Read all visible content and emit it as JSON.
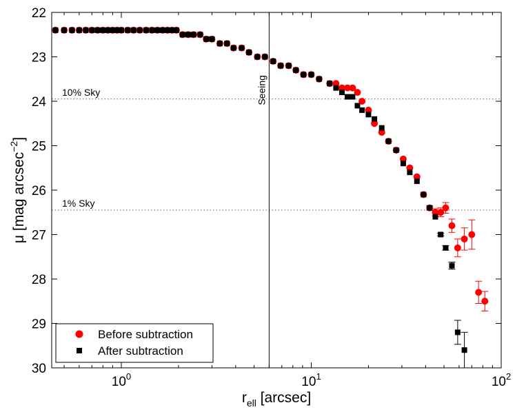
{
  "chart_data": {
    "type": "scatter",
    "title": "",
    "xlabel": "r",
    "xlabel_sub": "ell",
    "xlabel_rest": " [arcsec]",
    "ylabel": "μ [mag arcsec",
    "ylabel_sup": "−2",
    "ylabel_end": "]",
    "xscale": "log",
    "xlim": [
      0.43,
      100
    ],
    "ylim": [
      22,
      30
    ],
    "y_inverted": true,
    "x_ticks": [
      {
        "value": 1,
        "base": "10",
        "exp": "0"
      },
      {
        "value": 10,
        "base": "10",
        "exp": "1"
      },
      {
        "value": 100,
        "base": "10",
        "exp": "2"
      }
    ],
    "y_ticks": [
      "22",
      "23",
      "24",
      "25",
      "26",
      "27",
      "28",
      "29",
      "30"
    ],
    "grid": false,
    "legend_position": "bottom-left",
    "vertical_line": {
      "x": 6.0,
      "label": "Seeing"
    },
    "horizontal_lines": [
      {
        "y": 23.95,
        "label": "10% Sky"
      },
      {
        "y": 26.45,
        "label": "1% Sky"
      }
    ],
    "series": [
      {
        "name": "Before subtraction",
        "color": "#ff0000",
        "marker": "circle",
        "x": [
          0.45,
          0.5,
          0.55,
          0.6,
          0.65,
          0.7,
          0.75,
          0.8,
          0.85,
          0.9,
          0.95,
          1.0,
          1.08,
          1.16,
          1.25,
          1.35,
          1.45,
          1.55,
          1.65,
          1.75,
          1.85,
          1.95,
          2.1,
          2.25,
          2.4,
          2.6,
          2.8,
          3.0,
          3.3,
          3.6,
          3.9,
          4.3,
          4.7,
          5.2,
          5.7,
          6.3,
          6.9,
          7.6,
          8.3,
          9.1,
          10.0,
          11.0,
          12.5,
          13.5,
          14.5,
          15.5,
          16.5,
          17.5,
          18.5,
          20.0,
          21.5,
          23.5,
          25.5,
          28.0,
          30.5,
          33.0,
          36.0,
          39.0,
          42.0,
          45.0,
          48.0,
          51.0,
          55.0,
          59.0,
          64.0,
          70.0,
          76.0,
          82.0
        ],
        "y": [
          22.4,
          22.4,
          22.4,
          22.4,
          22.4,
          22.4,
          22.4,
          22.4,
          22.4,
          22.4,
          22.4,
          22.4,
          22.4,
          22.4,
          22.4,
          22.4,
          22.4,
          22.4,
          22.4,
          22.4,
          22.4,
          22.4,
          22.5,
          22.5,
          22.5,
          22.5,
          22.6,
          22.6,
          22.7,
          22.7,
          22.8,
          22.8,
          22.9,
          23.0,
          23.0,
          23.1,
          23.2,
          23.2,
          23.3,
          23.4,
          23.4,
          23.5,
          23.6,
          23.6,
          23.7,
          23.7,
          23.7,
          23.8,
          24.0,
          24.2,
          24.5,
          24.7,
          24.9,
          25.1,
          25.3,
          25.5,
          25.7,
          26.1,
          26.4,
          26.5,
          26.5,
          26.4,
          26.8,
          27.3,
          27.1,
          27.0,
          28.3,
          28.5
        ],
        "err": [
          0,
          0,
          0,
          0,
          0,
          0,
          0,
          0,
          0,
          0,
          0,
          0,
          0,
          0,
          0,
          0,
          0,
          0,
          0,
          0,
          0,
          0,
          0,
          0,
          0,
          0,
          0,
          0,
          0,
          0,
          0,
          0,
          0,
          0,
          0,
          0,
          0,
          0,
          0,
          0,
          0,
          0,
          0,
          0,
          0,
          0,
          0,
          0,
          0,
          0,
          0,
          0,
          0,
          0,
          0,
          0,
          0,
          0,
          0.05,
          0.08,
          0.1,
          0.12,
          0.15,
          0.2,
          0.25,
          0.33,
          0.25,
          0.22
        ]
      },
      {
        "name": "After subtraction",
        "color": "#000000",
        "marker": "square",
        "x": [
          0.45,
          0.5,
          0.55,
          0.6,
          0.65,
          0.7,
          0.75,
          0.8,
          0.85,
          0.9,
          0.95,
          1.0,
          1.08,
          1.16,
          1.25,
          1.35,
          1.45,
          1.55,
          1.65,
          1.75,
          1.85,
          1.95,
          2.1,
          2.25,
          2.4,
          2.6,
          2.8,
          3.0,
          3.3,
          3.6,
          3.9,
          4.3,
          4.7,
          5.2,
          5.7,
          6.3,
          6.9,
          7.6,
          8.3,
          9.1,
          10.0,
          11.0,
          12.5,
          13.5,
          14.5,
          15.5,
          16.5,
          17.5,
          18.5,
          20.0,
          21.5,
          23.5,
          25.5,
          28.0,
          30.5,
          33.0,
          36.0,
          39.0,
          42.0,
          45.0,
          48.0,
          51.0,
          55.0,
          59.0,
          64.0
        ],
        "y": [
          22.4,
          22.4,
          22.4,
          22.4,
          22.4,
          22.4,
          22.4,
          22.4,
          22.4,
          22.4,
          22.4,
          22.4,
          22.4,
          22.4,
          22.4,
          22.4,
          22.4,
          22.4,
          22.4,
          22.4,
          22.4,
          22.4,
          22.5,
          22.5,
          22.5,
          22.5,
          22.6,
          22.6,
          22.7,
          22.7,
          22.8,
          22.8,
          22.9,
          23.0,
          23.0,
          23.1,
          23.2,
          23.2,
          23.3,
          23.4,
          23.4,
          23.5,
          23.6,
          23.7,
          23.8,
          23.9,
          23.9,
          24.1,
          24.2,
          24.3,
          24.4,
          24.6,
          24.9,
          25.1,
          25.4,
          25.6,
          25.8,
          26.1,
          26.4,
          26.6,
          27.0,
          27.3,
          27.7,
          29.2,
          29.6
        ],
        "err": [
          0,
          0,
          0,
          0,
          0,
          0,
          0,
          0,
          0,
          0,
          0,
          0,
          0,
          0,
          0,
          0,
          0,
          0,
          0,
          0,
          0,
          0,
          0,
          0,
          0,
          0,
          0,
          0,
          0,
          0,
          0,
          0,
          0,
          0,
          0,
          0,
          0,
          0,
          0,
          0,
          0,
          0,
          0,
          0,
          0,
          0,
          0,
          0,
          0,
          0,
          0,
          0,
          0,
          0,
          0,
          0,
          0,
          0,
          0,
          0,
          0.03,
          0.05,
          0.08,
          0.27,
          0.4
        ]
      }
    ]
  }
}
